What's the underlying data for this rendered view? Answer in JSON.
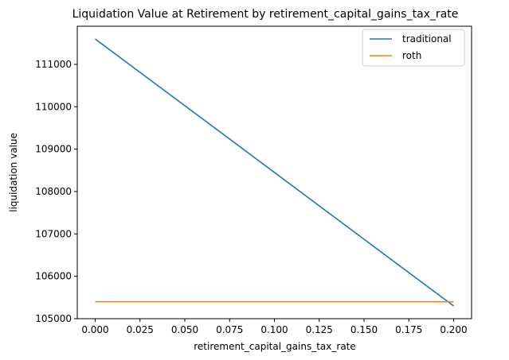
{
  "chart_data": {
    "type": "line",
    "title": "Liquidation Value at Retirement by retirement_capital_gains_tax_rate",
    "xlabel": "retirement_capital_gains_tax_rate",
    "ylabel": "liquidation value",
    "xlim": [
      -0.01,
      0.21
    ],
    "ylim": [
      105000,
      111900
    ],
    "xticks": [
      0.0,
      0.025,
      0.05,
      0.075,
      0.1,
      0.125,
      0.15,
      0.175,
      0.2
    ],
    "xtick_labels": [
      "0.000",
      "0.025",
      "0.050",
      "0.075",
      "0.100",
      "0.125",
      "0.150",
      "0.175",
      "0.200"
    ],
    "yticks": [
      105000,
      106000,
      107000,
      108000,
      109000,
      110000,
      111000
    ],
    "ytick_labels": [
      "105000",
      "106000",
      "107000",
      "108000",
      "109000",
      "110000",
      "111000"
    ],
    "grid": false,
    "legend_position": "top-right",
    "series": [
      {
        "name": "traditional",
        "color": "#1f77b4",
        "x": [
          0.0,
          0.2
        ],
        "y": [
          111600,
          105300
        ]
      },
      {
        "name": "roth",
        "color": "#ff7f0e",
        "x": [
          0.0,
          0.2
        ],
        "y": [
          105400,
          105400
        ]
      }
    ]
  }
}
